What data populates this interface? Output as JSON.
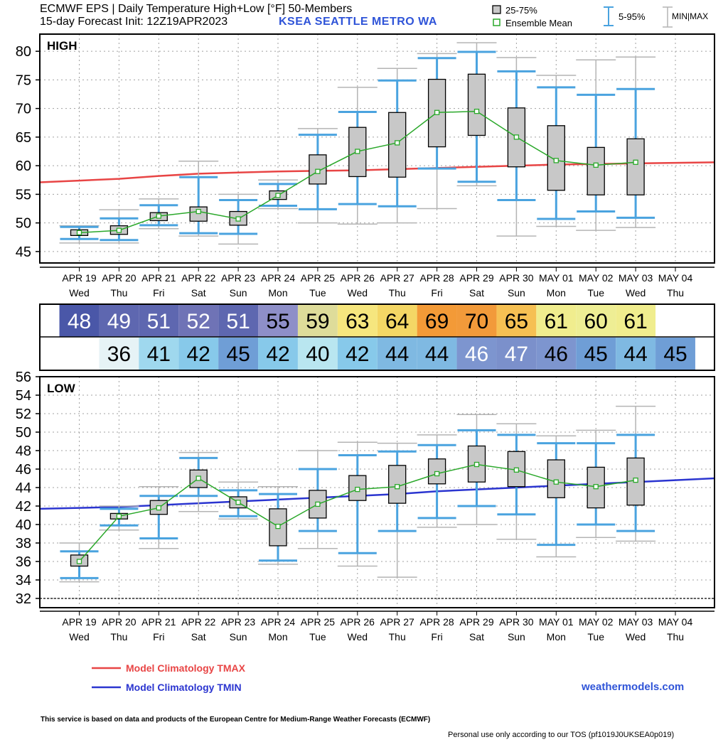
{
  "header": {
    "title_line1": "ECMWF EPS | Daily Temperature High+Low [°F]  50-Members",
    "title_line2": "15-day Forecast Init: 12Z19APR2023",
    "station": "KSEA  SEATTLE METRO   WA"
  },
  "legend": {
    "box_label": "25-75%",
    "mean_label": "Ensemble Mean",
    "whisker_label": "5-95%",
    "minmax_label": "MIN|MAX"
  },
  "colors": {
    "box_fill": "#c8c8c8",
    "mean_line": "#2aa82a",
    "whisker": "#4aa3df",
    "minmax": "#b4b4b4",
    "tmax_clim": "#e84545",
    "tmin_clim": "#2b35d0",
    "brand_blue": "#2f54d8"
  },
  "dates": [
    "APR 19",
    "APR 20",
    "APR 21",
    "APR 22",
    "APR 23",
    "APR 24",
    "APR 25",
    "APR 26",
    "APR 27",
    "APR 28",
    "APR 29",
    "APR 30",
    "MAY 01",
    "MAY 02",
    "MAY 03",
    "MAY 04"
  ],
  "days": [
    "Wed",
    "Thu",
    "Fri",
    "Sat",
    "Sun",
    "Mon",
    "Tue",
    "Wed",
    "Thu",
    "Fri",
    "Sat",
    "Sun",
    "Mon",
    "Tue",
    "Wed",
    "Thu"
  ],
  "chart_data": [
    {
      "type": "box",
      "panel_label": "HIGH",
      "ylim": [
        43,
        83
      ],
      "yticks": [
        45,
        50,
        55,
        60,
        65,
        70,
        75,
        80
      ],
      "grid": true,
      "series": [
        {
          "name": "Model Climatology TMAX",
          "values": [
            57.4,
            57.7,
            58.2,
            58.6,
            58.8,
            59.0,
            59.1,
            59.2,
            59.4,
            59.6,
            59.8,
            60.0,
            60.2,
            60.3,
            60.4,
            60.5
          ]
        }
      ],
      "days": [
        {
          "min": 46.5,
          "p5": 47.2,
          "q1": 47.8,
          "mean": 48.3,
          "q3": 48.8,
          "p95": 49.3,
          "max": 49.5
        },
        {
          "min": 46.5,
          "p5": 47.0,
          "q1": 48.0,
          "mean": 48.7,
          "q3": 49.5,
          "p95": 50.8,
          "max": 52.3
        },
        {
          "min": 49.0,
          "p5": 49.6,
          "q1": 50.4,
          "mean": 51.2,
          "q3": 51.8,
          "p95": 53.1,
          "max": 54.2
        },
        {
          "min": 47.7,
          "p5": 48.2,
          "q1": 50.3,
          "mean": 52.0,
          "q3": 52.8,
          "p95": 58.0,
          "max": 60.8
        },
        {
          "min": 46.3,
          "p5": 48.1,
          "q1": 49.6,
          "mean": 50.7,
          "q3": 52.0,
          "p95": 54.0,
          "max": 55.0
        },
        {
          "min": 52.5,
          "p5": 53.0,
          "q1": 54.1,
          "mean": 54.8,
          "q3": 55.6,
          "p95": 56.8,
          "max": 57.5
        },
        {
          "min": 50.0,
          "p5": 52.4,
          "q1": 56.8,
          "mean": 59.0,
          "q3": 61.9,
          "p95": 65.4,
          "max": 66.5
        },
        {
          "min": 49.8,
          "p5": 53.3,
          "q1": 58.1,
          "mean": 62.5,
          "q3": 66.7,
          "p95": 69.4,
          "max": 73.7
        },
        {
          "min": 50.0,
          "p5": 52.9,
          "q1": 58.0,
          "mean": 64.0,
          "q3": 69.3,
          "p95": 74.9,
          "max": 77.0
        },
        {
          "min": 52.5,
          "p5": 59.5,
          "q1": 63.3,
          "mean": 69.3,
          "q3": 75.1,
          "p95": 78.8,
          "max": 79.6
        },
        {
          "min": 56.5,
          "p5": 57.2,
          "q1": 65.3,
          "mean": 69.5,
          "q3": 76.0,
          "p95": 79.9,
          "max": 81.5
        },
        {
          "min": 47.7,
          "p5": 54.0,
          "q1": 59.8,
          "mean": 65.0,
          "q3": 70.1,
          "p95": 76.5,
          "max": 78.9
        },
        {
          "min": 49.4,
          "p5": 50.7,
          "q1": 55.7,
          "mean": 60.9,
          "q3": 67.0,
          "p95": 73.7,
          "max": 75.8
        },
        {
          "min": 48.7,
          "p5": 52.0,
          "q1": 54.9,
          "mean": 60.1,
          "q3": 63.2,
          "p95": 72.4,
          "max": 78.5
        },
        {
          "min": 49.2,
          "p5": 50.9,
          "q1": 54.9,
          "mean": 60.6,
          "q3": 64.7,
          "p95": 73.4,
          "max": 79.0
        }
      ]
    },
    {
      "type": "table",
      "rows": [
        {
          "label": "HIGH",
          "values": [
            48,
            49,
            51,
            52,
            51,
            55,
            59,
            63,
            64,
            69,
            70,
            65,
            61,
            60,
            61
          ]
        },
        {
          "label": "LOW",
          "values": [
            36,
            41,
            42,
            45,
            42,
            40,
            42,
            44,
            44,
            46,
            47,
            46,
            45,
            44,
            45
          ]
        }
      ]
    },
    {
      "type": "box",
      "panel_label": "LOW",
      "ylim": [
        31,
        56
      ],
      "yticks": [
        32,
        34,
        36,
        38,
        40,
        42,
        44,
        46,
        48,
        50,
        52,
        54,
        56
      ],
      "grid": true,
      "series": [
        {
          "name": "Model Climatology TMIN",
          "values": [
            41.8,
            41.9,
            42.1,
            42.3,
            42.5,
            42.7,
            42.9,
            43.1,
            43.3,
            43.6,
            43.8,
            44.0,
            44.2,
            44.4,
            44.6,
            44.8
          ]
        }
      ],
      "days": [
        {
          "min": 33.8,
          "p5": 34.2,
          "q1": 35.5,
          "mean": 36.0,
          "q3": 36.7,
          "p95": 37.1,
          "max": 38.0
        },
        {
          "min": 39.4,
          "p5": 39.9,
          "q1": 40.6,
          "mean": 40.9,
          "q3": 41.2,
          "p95": 41.7,
          "max": 42.0
        },
        {
          "min": 37.4,
          "p5": 38.5,
          "q1": 41.1,
          "mean": 41.8,
          "q3": 42.6,
          "p95": 43.1,
          "max": 44.1
        },
        {
          "min": 41.4,
          "p5": 43.1,
          "q1": 44.0,
          "mean": 45.0,
          "q3": 45.9,
          "p95": 47.2,
          "max": 47.8
        },
        {
          "min": 40.6,
          "p5": 40.9,
          "q1": 41.8,
          "mean": 42.4,
          "q3": 43.0,
          "p95": 43.7,
          "max": 44.6
        },
        {
          "min": 35.7,
          "p5": 36.1,
          "q1": 37.7,
          "mean": 39.8,
          "q3": 41.7,
          "p95": 43.3,
          "max": 44.1
        },
        {
          "min": 37.4,
          "p5": 39.3,
          "q1": 40.7,
          "mean": 42.2,
          "q3": 43.7,
          "p95": 46.0,
          "max": 48.0
        },
        {
          "min": 35.5,
          "p5": 36.9,
          "q1": 42.6,
          "mean": 43.8,
          "q3": 45.3,
          "p95": 47.5,
          "max": 48.9
        },
        {
          "min": 34.3,
          "p5": 39.3,
          "q1": 42.3,
          "mean": 44.1,
          "q3": 46.4,
          "p95": 47.9,
          "max": 48.8
        },
        {
          "min": 39.7,
          "p5": 40.7,
          "q1": 44.4,
          "mean": 45.5,
          "q3": 47.1,
          "p95": 48.6,
          "max": 49.7
        },
        {
          "min": 40.0,
          "p5": 42.0,
          "q1": 44.6,
          "mean": 46.5,
          "q3": 48.5,
          "p95": 50.2,
          "max": 51.9
        },
        {
          "min": 38.4,
          "p5": 41.1,
          "q1": 44.1,
          "mean": 45.9,
          "q3": 47.9,
          "p95": 49.7,
          "max": 50.9
        },
        {
          "min": 36.5,
          "p5": 37.8,
          "q1": 42.9,
          "mean": 44.6,
          "q3": 47.0,
          "p95": 48.8,
          "max": 49.6
        },
        {
          "min": 38.6,
          "p5": 40.0,
          "q1": 41.8,
          "mean": 44.1,
          "q3": 46.2,
          "p95": 48.8,
          "max": 50.2
        },
        {
          "min": 38.2,
          "p5": 39.3,
          "q1": 42.1,
          "mean": 44.8,
          "q3": 47.2,
          "p95": 49.7,
          "max": 52.8
        }
      ]
    }
  ],
  "footer": {
    "clim_tmax_label": "Model Climatology TMAX",
    "clim_tmin_label": "Model Climatology TMIN",
    "site": "weathermodels.com",
    "disclaimer": "This service is based on data and products of the European Centre for Medium-Range Weather Forecasts (ECMWF)",
    "tos": "Personal use only according to our TOS (pf1019J0UKSEA0p019)"
  }
}
